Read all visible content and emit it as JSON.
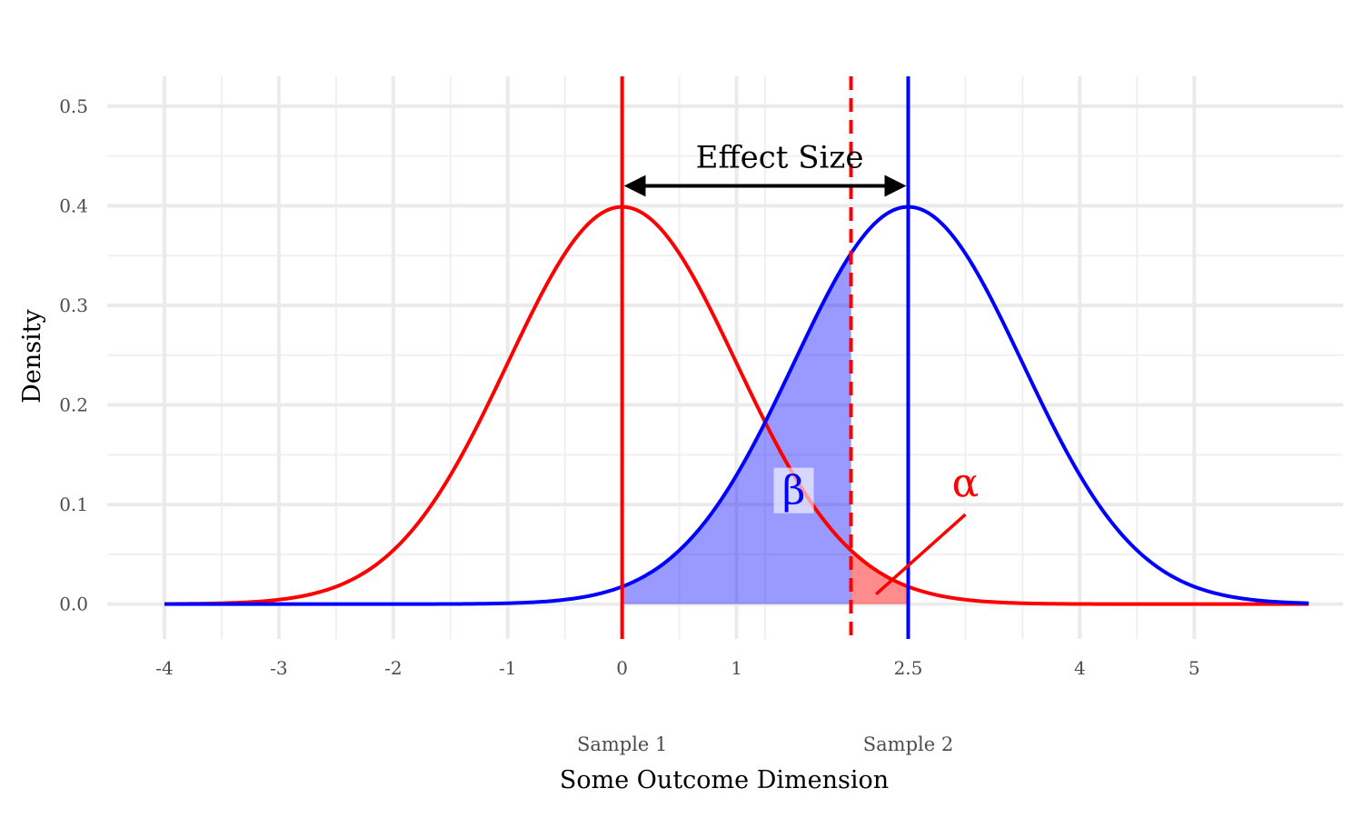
{
  "chart_data": {
    "type": "line",
    "title": "",
    "xlabel": "Some Outcome Dimension",
    "ylabel": "Density",
    "xlim": [
      -4.5,
      6.3
    ],
    "ylim": [
      -0.035,
      0.53
    ],
    "grid": true,
    "x_ticks": [
      -4,
      -3,
      -2,
      -1,
      0,
      1,
      2.5,
      4,
      5
    ],
    "x_tick_labels": [
      "-4",
      "-3",
      "-2",
      "-1",
      "0",
      "1",
      "2.5",
      "4",
      "5"
    ],
    "x_minor_ticks": [
      -3.5,
      -2.5,
      -1.5,
      -0.5,
      0.5,
      1.25,
      2,
      3,
      3.5,
      4.5
    ],
    "y_ticks": [
      0.0,
      0.1,
      0.2,
      0.3,
      0.4,
      0.5
    ],
    "y_tick_labels": [
      "0.0",
      "0.1",
      "0.2",
      "0.3",
      "0.4",
      "0.5"
    ],
    "y_minor_ticks": [
      0.05,
      0.15,
      0.25,
      0.35,
      0.45
    ],
    "series": [
      {
        "mean": 0,
        "sd": 1,
        "x_range": [
          -4,
          6
        ],
        "color": "#ff0000"
      },
      {
        "mean": 2.5,
        "sd": 1,
        "x_range": [
          -4,
          6
        ],
        "color": "#0000ff"
      }
    ],
    "vertical_lines": [
      {
        "x": 0,
        "style": "solid",
        "color": "#ff0000"
      },
      {
        "x": 2.5,
        "style": "solid",
        "color": "#0000ff"
      },
      {
        "x": 2,
        "style": "dashed",
        "color": "#ff0000"
      }
    ],
    "shaded_regions": [
      {
        "label": "β",
        "under_series": 1,
        "x_from": 0,
        "x_to": 2,
        "color": "#0000ff",
        "opacity": 0.4
      },
      {
        "label": "α",
        "under_series": 0,
        "x_from": 2,
        "x_to": 2.5,
        "color": "#ff0000",
        "opacity": 0.45
      }
    ],
    "effect_size": {
      "label": "Effect Size",
      "x_from": 0,
      "x_to": 2.5,
      "y": 0.42
    },
    "beta_label": {
      "text": "β",
      "x": 1.5,
      "y": 0.115,
      "color": "#0000ff"
    },
    "alpha_label": {
      "text": "α",
      "x": 3,
      "y": 0.11,
      "color": "#ff0000",
      "pointer_from": [
        3,
        0.09
      ],
      "pointer_to": [
        2.22,
        0.01
      ]
    },
    "sample_labels": [
      {
        "text": "Sample 1",
        "x": 0
      },
      {
        "text": "Sample 2",
        "x": 2.5
      }
    ]
  }
}
